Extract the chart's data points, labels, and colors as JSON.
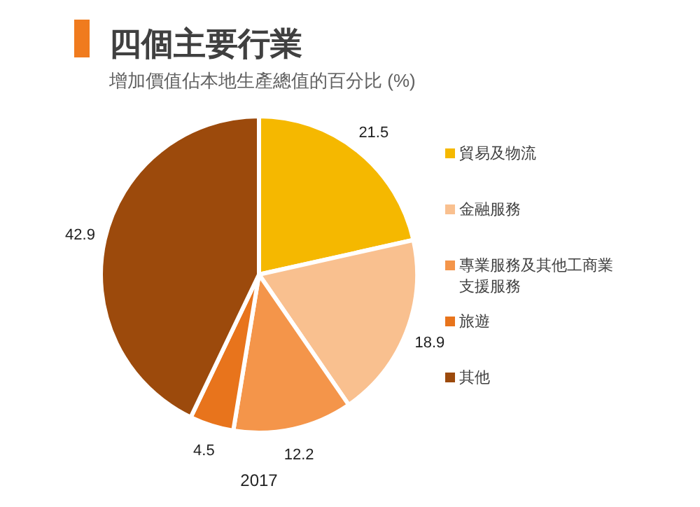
{
  "chart_data": {
    "type": "pie",
    "title": "四個主要行業",
    "subtitle": "增加價值佔本地生產總值的百分比 (%)",
    "categories": [
      "貿易及物流",
      "金融服務",
      "專業服務及其他工商業支援服務",
      "旅遊",
      "其他"
    ],
    "values": [
      21.5,
      18.9,
      12.2,
      4.5,
      42.9
    ],
    "colors": [
      "#f5b800",
      "#f9c08f",
      "#f4954a",
      "#e8741c",
      "#9c4a0c"
    ],
    "data_labels": true,
    "legend": "right",
    "annotations": [
      "2017"
    ]
  }
}
